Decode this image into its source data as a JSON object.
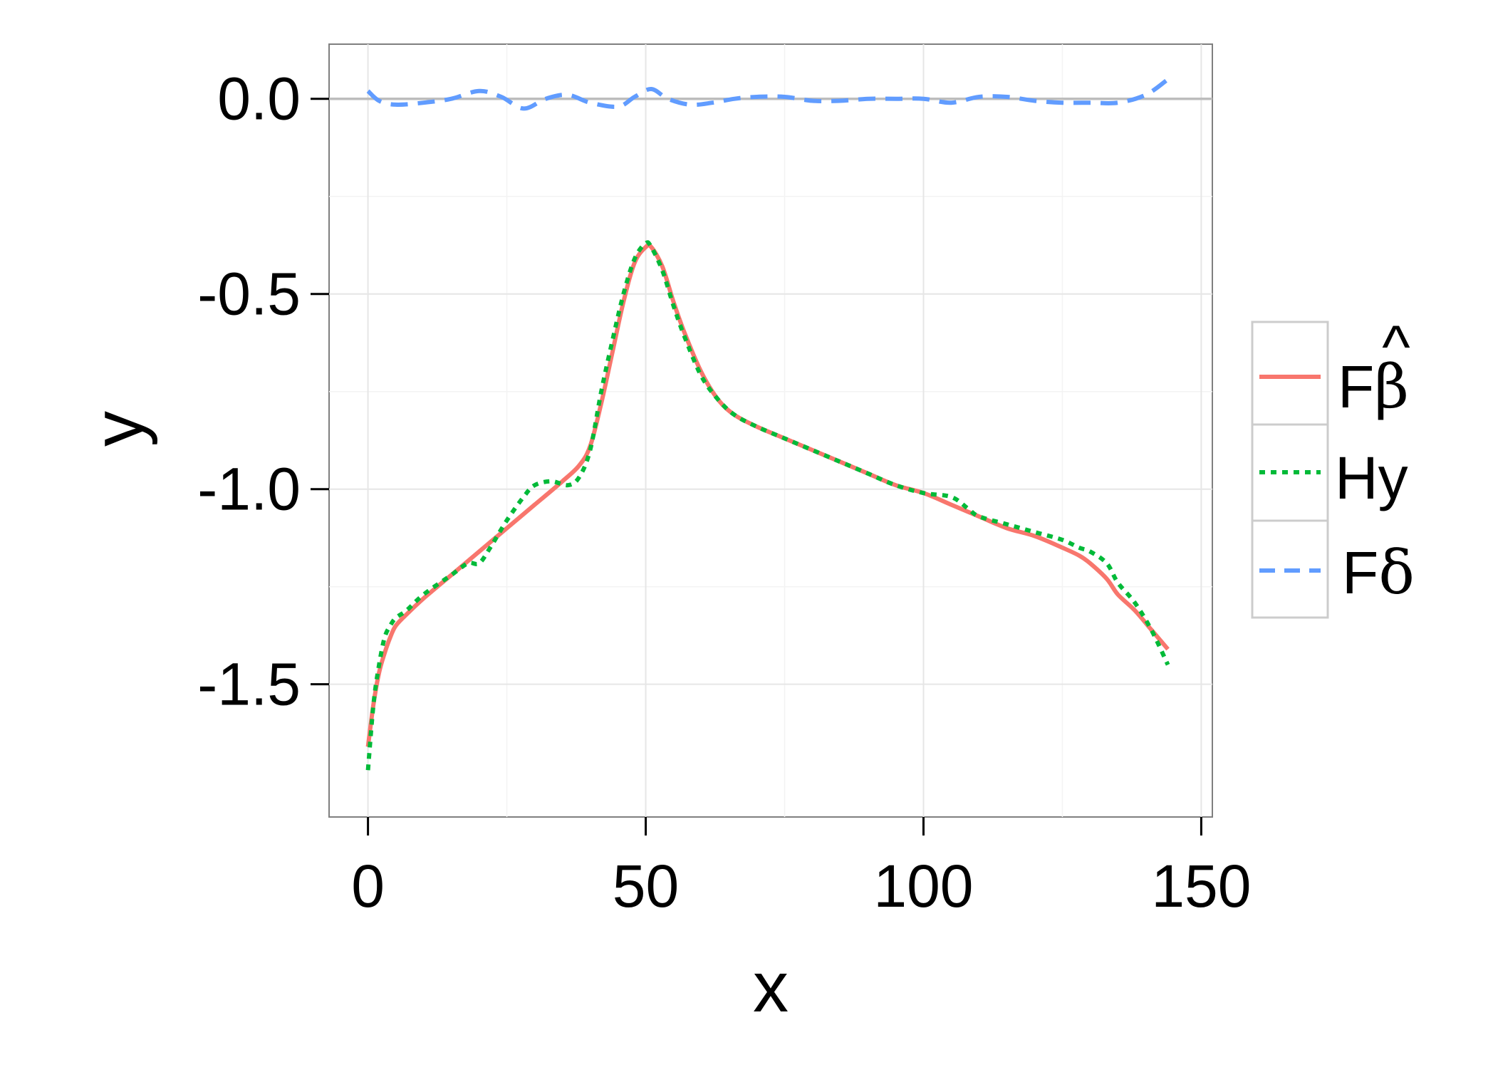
{
  "chart_data": {
    "type": "line",
    "xlabel": "x",
    "ylabel": "y",
    "xlim": [
      -7,
      152
    ],
    "ylim": [
      -1.84,
      0.14
    ],
    "xticks": [
      0,
      50,
      100,
      150
    ],
    "xtick_labels": [
      "0",
      "50",
      "100",
      "150"
    ],
    "yticks": [
      0.0,
      -0.5,
      -1.0,
      -1.5
    ],
    "ytick_labels": [
      "0.0",
      "-0.5",
      "-1.0",
      "-1.5"
    ],
    "grid": true,
    "reference_line_y": 0,
    "legend_position": "right",
    "legend": [
      {
        "label": "Fβ̂",
        "base": "F",
        "symbol": "β",
        "accent": "^",
        "color": "#F8766D",
        "linestyle": "solid"
      },
      {
        "label": "Hy",
        "base": "Hy",
        "symbol": "",
        "accent": "",
        "color": "#00BA38",
        "linestyle": "dotted"
      },
      {
        "label": "Fδ",
        "base": "F",
        "symbol": "δ",
        "accent": "",
        "color": "#619CFF",
        "linestyle": "dashed"
      }
    ],
    "series": [
      {
        "name": "Fβ̂",
        "color": "#F8766D",
        "linestyle": "solid",
        "x": [
          0,
          1,
          2,
          3,
          4,
          5,
          7,
          10,
          15,
          20,
          25,
          30,
          35,
          38,
          40,
          42,
          44,
          46,
          48,
          50,
          51,
          53,
          55,
          57,
          60,
          63,
          66,
          70,
          75,
          80,
          85,
          90,
          95,
          100,
          105,
          110,
          115,
          120,
          125,
          128,
          130,
          133,
          135,
          138,
          141,
          144
        ],
        "y": [
          -1.66,
          -1.55,
          -1.47,
          -1.42,
          -1.38,
          -1.35,
          -1.32,
          -1.28,
          -1.22,
          -1.16,
          -1.1,
          -1.04,
          -0.98,
          -0.94,
          -0.89,
          -0.78,
          -0.65,
          -0.52,
          -0.42,
          -0.38,
          -0.38,
          -0.43,
          -0.52,
          -0.6,
          -0.7,
          -0.77,
          -0.81,
          -0.84,
          -0.87,
          -0.9,
          -0.93,
          -0.96,
          -0.99,
          -1.01,
          -1.04,
          -1.07,
          -1.1,
          -1.12,
          -1.15,
          -1.17,
          -1.19,
          -1.23,
          -1.27,
          -1.31,
          -1.36,
          -1.41
        ]
      },
      {
        "name": "Hy",
        "color": "#00BA38",
        "linestyle": "dotted",
        "x": [
          0,
          1,
          2,
          3,
          4,
          5,
          7,
          10,
          15,
          18,
          20,
          22,
          25,
          28,
          30,
          33,
          36,
          38,
          40,
          42,
          44,
          46,
          48,
          50,
          51,
          53,
          55,
          57,
          60,
          63,
          66,
          70,
          75,
          80,
          85,
          90,
          95,
          100,
          105,
          108,
          110,
          115,
          120,
          125,
          128,
          130,
          133,
          135,
          138,
          141,
          144
        ],
        "y": [
          -1.72,
          -1.55,
          -1.45,
          -1.38,
          -1.35,
          -1.33,
          -1.31,
          -1.27,
          -1.22,
          -1.19,
          -1.19,
          -1.15,
          -1.08,
          -1.02,
          -0.99,
          -0.98,
          -0.99,
          -0.97,
          -0.9,
          -0.75,
          -0.62,
          -0.5,
          -0.41,
          -0.37,
          -0.38,
          -0.44,
          -0.53,
          -0.61,
          -0.71,
          -0.77,
          -0.81,
          -0.84,
          -0.87,
          -0.9,
          -0.93,
          -0.96,
          -0.99,
          -1.01,
          -1.02,
          -1.05,
          -1.07,
          -1.09,
          -1.11,
          -1.13,
          -1.15,
          -1.16,
          -1.19,
          -1.24,
          -1.29,
          -1.36,
          -1.45
        ]
      },
      {
        "name": "Fδ",
        "color": "#619CFF",
        "linestyle": "dashed",
        "x": [
          0,
          2,
          5,
          10,
          15,
          20,
          24,
          28,
          32,
          36,
          40,
          45,
          48,
          51,
          54,
          58,
          62,
          66,
          70,
          75,
          80,
          85,
          90,
          95,
          100,
          105,
          110,
          115,
          120,
          125,
          130,
          135,
          140,
          144
        ],
        "y": [
          0.02,
          -0.005,
          -0.015,
          -0.01,
          0.0,
          0.02,
          0.005,
          -0.025,
          0.0,
          0.01,
          -0.01,
          -0.02,
          0.005,
          0.025,
          0.0,
          -0.015,
          -0.01,
          0.0,
          0.005,
          0.005,
          -0.005,
          -0.005,
          0.0,
          0.0,
          0.0,
          -0.01,
          0.005,
          0.005,
          -0.005,
          -0.01,
          -0.01,
          -0.01,
          0.01,
          0.05
        ]
      }
    ]
  }
}
